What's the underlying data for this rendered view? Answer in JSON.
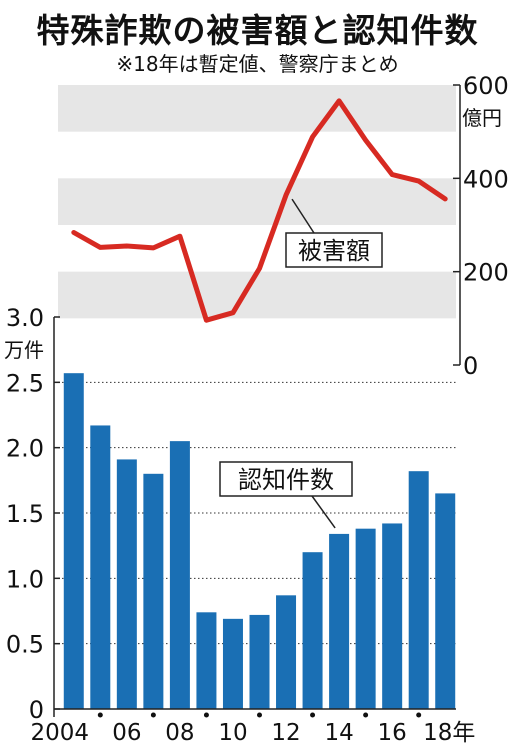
{
  "title": "特殊詐欺の被害額と認知件数",
  "note": "※18年は暫定値、警察庁まとめ",
  "chart_data": [
    {
      "type": "line",
      "name": "被害額",
      "unit": "億円",
      "x": [
        2004,
        2005,
        2006,
        2007,
        2008,
        2009,
        2010,
        2011,
        2012,
        2013,
        2014,
        2015,
        2016,
        2017,
        2018
      ],
      "values": [
        284,
        252,
        255,
        251,
        276,
        96,
        112,
        207,
        364,
        489,
        566,
        482,
        408,
        394,
        356
      ],
      "ylim": [
        0,
        600
      ],
      "yticks": [
        "0",
        "200",
        "400",
        "600"
      ],
      "color": "#d72a22",
      "grid_bands": true
    },
    {
      "type": "bar",
      "name": "認知件数",
      "unit": "万件",
      "x": [
        2004,
        2005,
        2006,
        2007,
        2008,
        2009,
        2010,
        2011,
        2012,
        2013,
        2014,
        2015,
        2016,
        2017,
        2018
      ],
      "values": [
        2.57,
        2.17,
        1.91,
        1.8,
        2.05,
        0.74,
        0.69,
        0.72,
        0.87,
        1.2,
        1.34,
        1.38,
        1.42,
        1.82,
        1.65
      ],
      "ylim": [
        0,
        3.0
      ],
      "yticks": [
        "0",
        "0.5",
        "1.0",
        "1.5",
        "2.0",
        "2.5",
        "3.0"
      ],
      "color": "#1a6fb4",
      "grid": "dotted"
    }
  ],
  "x_tick_labels": [
    "2004",
    "06",
    "08",
    "10",
    "12",
    "14",
    "16",
    "18年"
  ],
  "labels": {
    "line_callout": "被害額",
    "bar_callout": "認知件数",
    "line_unit": "億円",
    "bar_unit": "万件"
  }
}
